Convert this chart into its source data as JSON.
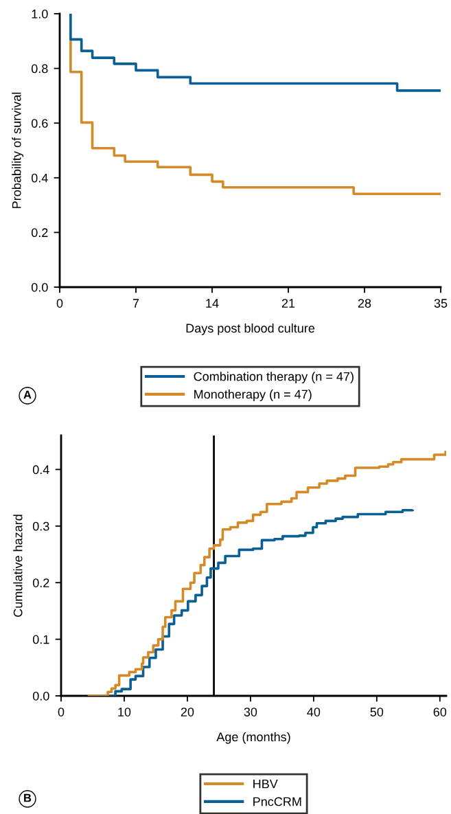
{
  "chart_data": [
    {
      "type": "step",
      "xlabel": "Days post blood culture",
      "ylabel": "Probability of survival",
      "xlim": [
        0,
        35
      ],
      "xticks": [
        0,
        7,
        14,
        21,
        28,
        35
      ],
      "ylim": [
        0,
        1.0
      ],
      "yticks": [
        {
          "value": 0,
          "label": "0.0"
        },
        {
          "value": 0.2,
          "label": "0.2"
        },
        {
          "value": 0.4,
          "label": "0.4"
        },
        {
          "value": 0.6,
          "label": "0.6"
        },
        {
          "value": 0.8,
          "label": "0.8"
        },
        {
          "value": 1.0,
          "label": "1.0"
        }
      ],
      "grid": false,
      "legend": "bottom",
      "annotations": [
        "A"
      ],
      "series": [
        {
          "name": "Combination therapy (n = 47)",
          "color": "#0a5f94",
          "x": [
            1,
            1,
            2,
            3,
            5,
            7,
            9,
            12,
            31,
            35
          ],
          "values": [
            1.0,
            0.906,
            0.864,
            0.839,
            0.817,
            0.793,
            0.768,
            0.745,
            0.719,
            0.719
          ]
        },
        {
          "name": "Monotherapy (n = 47)",
          "color": "#d58a2a",
          "x": [
            1,
            1,
            2,
            3,
            5,
            6,
            9,
            12,
            14,
            15,
            27,
            35
          ],
          "values": [
            0.906,
            0.787,
            0.602,
            0.508,
            0.481,
            0.459,
            0.439,
            0.411,
            0.386,
            0.365,
            0.341,
            0.341
          ]
        }
      ]
    },
    {
      "type": "step",
      "xlabel": "Age (months)",
      "ylabel": "Cumulative hazard",
      "xlim": [
        0,
        61
      ],
      "xticks": [
        0,
        10,
        20,
        30,
        40,
        50,
        60
      ],
      "ylim": [
        0,
        0.46
      ],
      "yticks": [
        {
          "value": 0,
          "label": "0.0"
        },
        {
          "value": 0.1,
          "label": "0.1"
        },
        {
          "value": 0.2,
          "label": "0.2"
        },
        {
          "value": 0.3,
          "label": "0.3"
        },
        {
          "value": 0.4,
          "label": "0.4"
        }
      ],
      "grid": false,
      "legend": "bottom",
      "annotations": [
        "B"
      ],
      "ref_lines": [
        {
          "axis": "x",
          "value": 24.2,
          "color": "#000000"
        }
      ],
      "series": [
        {
          "name": "HBV",
          "color": "#d58a2a",
          "x": [
            4.2,
            7.2,
            7.4,
            8.0,
            8.6,
            9.2,
            10.8,
            11.8,
            12.8,
            13.0,
            13.8,
            14.6,
            15.4,
            16.1,
            16.5,
            17.5,
            18.1,
            19.3,
            20.5,
            21.1,
            22.1,
            22.7,
            23.5,
            24.2,
            25.2,
            25.6,
            26.8,
            28.0,
            29.4,
            30.4,
            31.6,
            32.6,
            34.9,
            36.5,
            37.3,
            39.1,
            40.9,
            42.1,
            43.8,
            45.0,
            46.6,
            50.4,
            51.8,
            52.6,
            53.9,
            59.1,
            60.9
          ],
          "values": [
            0,
            0,
            0.007,
            0.013,
            0.019,
            0.036,
            0.042,
            0.047,
            0.057,
            0.068,
            0.077,
            0.089,
            0.1,
            0.122,
            0.139,
            0.151,
            0.167,
            0.189,
            0.2,
            0.217,
            0.231,
            0.245,
            0.26,
            0.266,
            0.276,
            0.294,
            0.298,
            0.306,
            0.309,
            0.32,
            0.325,
            0.339,
            0.343,
            0.349,
            0.36,
            0.368,
            0.375,
            0.38,
            0.384,
            0.389,
            0.403,
            0.405,
            0.409,
            0.413,
            0.418,
            0.426,
            0.433
          ]
        },
        {
          "name": "PncCRM",
          "color": "#0a5f94",
          "x": [
            7.4,
            8.6,
            9.6,
            11.0,
            11.8,
            13.0,
            14.0,
            15.0,
            16.1,
            17.1,
            17.9,
            19.1,
            20.1,
            21.3,
            22.3,
            23.1,
            23.7,
            24.9,
            26.0,
            28.2,
            30.4,
            31.8,
            33.8,
            35.1,
            37.7,
            38.7,
            39.9,
            40.5,
            41.9,
            43.5,
            44.6,
            47.0,
            51.4,
            54.1,
            55.7
          ],
          "values": [
            0,
            0.008,
            0.012,
            0.029,
            0.035,
            0.051,
            0.067,
            0.082,
            0.105,
            0.127,
            0.142,
            0.151,
            0.167,
            0.178,
            0.194,
            0.209,
            0.225,
            0.235,
            0.247,
            0.258,
            0.26,
            0.275,
            0.277,
            0.282,
            0.283,
            0.288,
            0.298,
            0.305,
            0.309,
            0.313,
            0.316,
            0.321,
            0.325,
            0.328,
            0.329
          ]
        }
      ]
    }
  ]
}
